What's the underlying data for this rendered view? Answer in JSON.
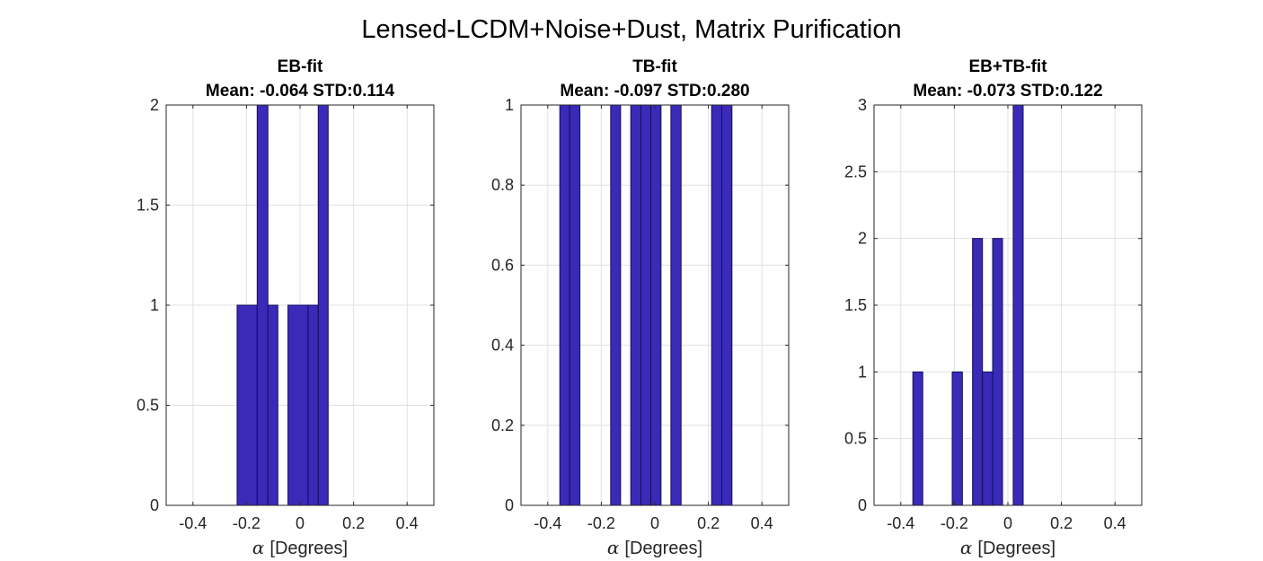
{
  "figure": {
    "title": "Lensed-LCDM+Noise+Dust, Matrix Purification"
  },
  "colors": {
    "bar_fill": "#3a2ab8",
    "bar_edge": "#140c5c",
    "grid": "#e0e0e0",
    "axes": "#262626"
  },
  "chart_data": [
    {
      "type": "bar",
      "title": "EB-fit",
      "subtitle": "Mean: -0.064 STD:0.114",
      "xlabel_symbol": "α",
      "xlabel": "[Degrees]",
      "xlim": [
        -0.5,
        0.5
      ],
      "ylim": [
        0,
        2
      ],
      "xticks": [
        -0.4,
        -0.2,
        0,
        0.2,
        0.4
      ],
      "xtick_labels": [
        "-0.4",
        "-0.2",
        "0",
        "0.2",
        "0.4"
      ],
      "yticks": [
        0,
        0.5,
        1,
        1.5,
        2
      ],
      "ytick_labels": [
        "0",
        "0.5",
        "1",
        "1.5",
        "2"
      ],
      "grid": true,
      "bins": [
        {
          "x0": -0.235,
          "x1": -0.16,
          "count": 1
        },
        {
          "x0": -0.16,
          "x1": -0.12,
          "count": 2
        },
        {
          "x0": -0.12,
          "x1": -0.083,
          "count": 1
        },
        {
          "x0": -0.045,
          "x1": 0.03,
          "count": 1
        },
        {
          "x0": 0.03,
          "x1": 0.068,
          "count": 1
        },
        {
          "x0": 0.068,
          "x1": 0.105,
          "count": 2
        }
      ]
    },
    {
      "type": "bar",
      "title": "TB-fit",
      "subtitle": "Mean: -0.097 STD:0.280",
      "xlabel_symbol": "α",
      "xlabel": "[Degrees]",
      "xlim": [
        -0.5,
        0.5
      ],
      "ylim": [
        0,
        1
      ],
      "xticks": [
        -0.4,
        -0.2,
        0,
        0.2,
        0.4
      ],
      "xtick_labels": [
        "-0.4",
        "-0.2",
        "0",
        "0.2",
        "0.4"
      ],
      "yticks": [
        0,
        0.2,
        0.4,
        0.6,
        0.8,
        1
      ],
      "ytick_labels": [
        "0",
        "0.2",
        "0.4",
        "0.6",
        "0.8",
        "1"
      ],
      "grid": true,
      "bins": [
        {
          "x0": -0.355,
          "x1": -0.318,
          "count": 1
        },
        {
          "x0": -0.318,
          "x1": -0.28,
          "count": 1
        },
        {
          "x0": -0.165,
          "x1": -0.128,
          "count": 1
        },
        {
          "x0": -0.09,
          "x1": -0.052,
          "count": 1
        },
        {
          "x0": -0.052,
          "x1": -0.015,
          "count": 1
        },
        {
          "x0": -0.015,
          "x1": 0.023,
          "count": 1
        },
        {
          "x0": 0.06,
          "x1": 0.098,
          "count": 1
        },
        {
          "x0": 0.212,
          "x1": 0.25,
          "count": 1
        },
        {
          "x0": 0.25,
          "x1": 0.288,
          "count": 1
        }
      ]
    },
    {
      "type": "bar",
      "title": "EB+TB-fit",
      "subtitle": "Mean: -0.073 STD:0.122",
      "xlabel_symbol": "α",
      "xlabel": "[Degrees]",
      "xlim": [
        -0.5,
        0.5
      ],
      "ylim": [
        0,
        3
      ],
      "xticks": [
        -0.4,
        -0.2,
        0,
        0.2,
        0.4
      ],
      "xtick_labels": [
        "-0.4",
        "-0.2",
        "0",
        "0.2",
        "0.4"
      ],
      "yticks": [
        0,
        0.5,
        1,
        1.5,
        2,
        2.5,
        3
      ],
      "ytick_labels": [
        "0",
        "0.5",
        "1",
        "1.5",
        "2",
        "2.5",
        "3"
      ],
      "grid": true,
      "bins": [
        {
          "x0": -0.355,
          "x1": -0.318,
          "count": 1
        },
        {
          "x0": -0.208,
          "x1": -0.17,
          "count": 1
        },
        {
          "x0": -0.132,
          "x1": -0.095,
          "count": 2
        },
        {
          "x0": -0.095,
          "x1": -0.057,
          "count": 1
        },
        {
          "x0": -0.057,
          "x1": -0.02,
          "count": 2
        },
        {
          "x0": 0.02,
          "x1": 0.057,
          "count": 3
        }
      ]
    }
  ]
}
